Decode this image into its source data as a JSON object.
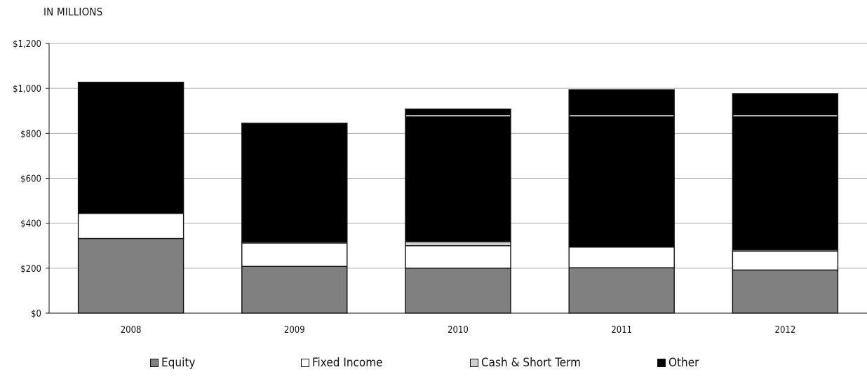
{
  "chart_data": {
    "type": "bar",
    "stacked": true,
    "ylabel": "IN MILLIONS",
    "categories": [
      "2008",
      "2009",
      "2010",
      "2011",
      "2012"
    ],
    "ylim": [
      0,
      1200
    ],
    "y_ticks": [
      "$0",
      "$200",
      "$400",
      "$600",
      "$800",
      "$1,000",
      "$1,200"
    ],
    "y_tick_values": [
      0,
      200,
      400,
      600,
      800,
      1000,
      1200
    ],
    "grid": true,
    "legend_position": "bottom",
    "series": [
      {
        "name": "Equity",
        "color": "#808080",
        "values": [
          332,
          208,
          200,
          202,
          192
        ]
      },
      {
        "name": "Fixed Income",
        "color": "#ffffff",
        "values": [
          112,
          104,
          100,
          92,
          84
        ]
      },
      {
        "name": "Cash & Short Term",
        "color": "#d0d0d0",
        "values": [
          0,
          5,
          18,
          0,
          6
        ]
      },
      {
        "name": "Other",
        "color": "#000000",
        "values": [
          583,
          528,
          590,
          700,
          694
        ]
      }
    ],
    "segment_lines": [
      null,
      null,
      878,
      878,
      878
    ]
  }
}
